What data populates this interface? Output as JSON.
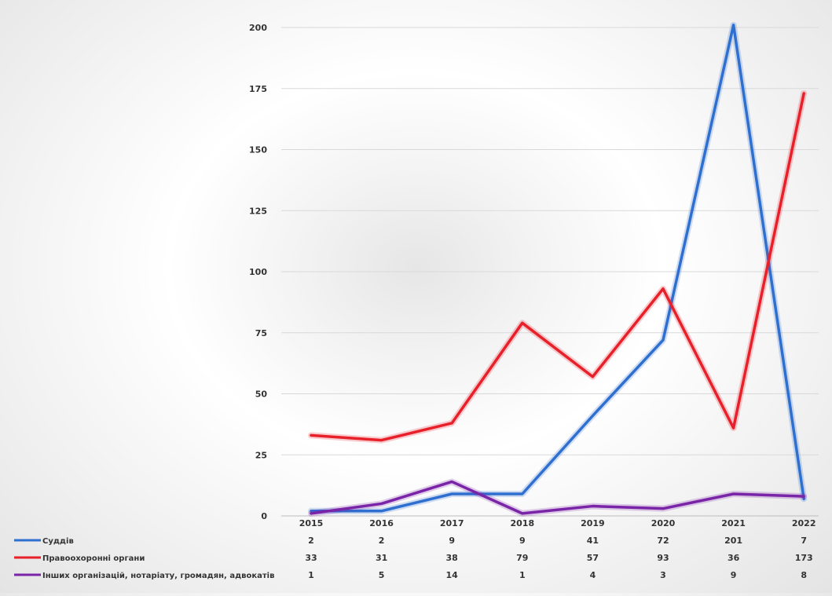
{
  "chart_data": {
    "type": "line",
    "title": "",
    "xlabel": "",
    "ylabel": "",
    "categories": [
      "2015",
      "2016",
      "2017",
      "2018",
      "2019",
      "2020",
      "2021",
      "2022"
    ],
    "ylim": [
      0,
      200
    ],
    "yticks": [
      0,
      25,
      50,
      75,
      100,
      125,
      150,
      175,
      200
    ],
    "grid": true,
    "legend_placement": "bottom-left data table",
    "series": [
      {
        "name": "Суддів",
        "color": "#2f6fd0",
        "values": [
          2,
          2,
          9,
          9,
          41,
          72,
          201,
          7
        ]
      },
      {
        "name": "Правоохоронні органи",
        "color": "#e8202a",
        "values": [
          33,
          31,
          38,
          79,
          57,
          93,
          36,
          173
        ]
      },
      {
        "name": "Інших організацій, нотаріату, громадян, адвокатів",
        "color": "#7a24a8",
        "values": [
          1,
          5,
          14,
          1,
          4,
          3,
          9,
          8
        ]
      }
    ]
  }
}
